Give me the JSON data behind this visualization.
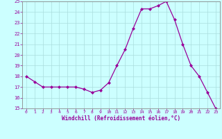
{
  "x": [
    0,
    1,
    2,
    3,
    4,
    5,
    6,
    7,
    8,
    9,
    10,
    11,
    12,
    13,
    14,
    15,
    16,
    17,
    18,
    19,
    20,
    21,
    22,
    23
  ],
  "y": [
    18,
    17.5,
    17,
    17,
    17,
    17,
    17,
    16.8,
    16.5,
    16.7,
    17.4,
    19,
    20.5,
    22.5,
    24.3,
    24.3,
    24.6,
    25,
    23.3,
    21,
    19,
    18,
    16.5,
    15
  ],
  "line_color": "#990099",
  "marker": "D",
  "marker_size": 2,
  "bg_color": "#ccffff",
  "grid_color": "#aadddd",
  "xlabel": "Windchill (Refroidissement éolien,°C)",
  "xlabel_color": "#990099",
  "tick_color": "#990099",
  "spine_color": "#888888",
  "ylim": [
    15,
    25
  ],
  "xlim": [
    -0.5,
    23.5
  ],
  "yticks": [
    15,
    16,
    17,
    18,
    19,
    20,
    21,
    22,
    23,
    24,
    25
  ],
  "xticks": [
    0,
    1,
    2,
    3,
    4,
    5,
    6,
    7,
    8,
    9,
    10,
    11,
    12,
    13,
    14,
    15,
    16,
    17,
    18,
    19,
    20,
    21,
    22,
    23
  ]
}
